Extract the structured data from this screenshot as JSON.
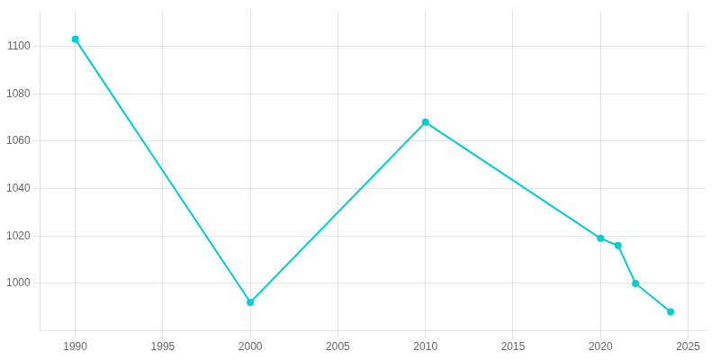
{
  "chart_data": {
    "type": "line",
    "x": [
      1990,
      2000,
      2010,
      2020,
      2021,
      2022,
      2024
    ],
    "values": [
      1103,
      992,
      1068,
      1019,
      1016,
      1000,
      988
    ],
    "color": "#00CED1",
    "marker": "circle",
    "xlim": [
      1988,
      2026
    ],
    "ylim": [
      980,
      1115
    ],
    "xticks": [
      1990,
      1995,
      2000,
      2005,
      2010,
      2015,
      2020,
      2025
    ],
    "yticks": [
      1000,
      1020,
      1040,
      1060,
      1080,
      1100
    ],
    "grid": true
  }
}
